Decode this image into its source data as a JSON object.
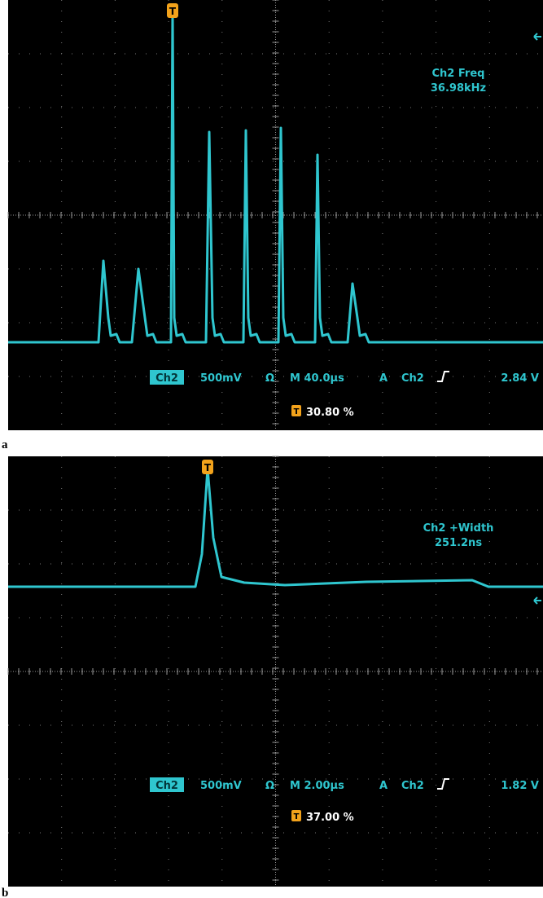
{
  "panels": [
    {
      "label": "a",
      "trigger_marker": "T",
      "measurement": {
        "name": "Ch2 Freq",
        "value": "36.98kHz"
      },
      "readout": {
        "channel": "Ch2",
        "scale": "500mV",
        "coupling": "Ω",
        "timebase": "M 40.0µs",
        "trigger_mode": "A",
        "trigger_source": "Ch2",
        "trigger_level": "2.84 V"
      },
      "trigger_position": "30.80 %"
    },
    {
      "label": "b",
      "trigger_marker": "T",
      "measurement": {
        "name": "Ch2 +Width",
        "value": "251.2ns"
      },
      "readout": {
        "channel": "Ch2",
        "scale": "500mV",
        "coupling": "Ω",
        "timebase": "M 2.00µs",
        "trigger_mode": "A",
        "trigger_source": "Ch2",
        "trigger_level": "1.82 V"
      },
      "trigger_position": "37.00 %"
    }
  ]
}
